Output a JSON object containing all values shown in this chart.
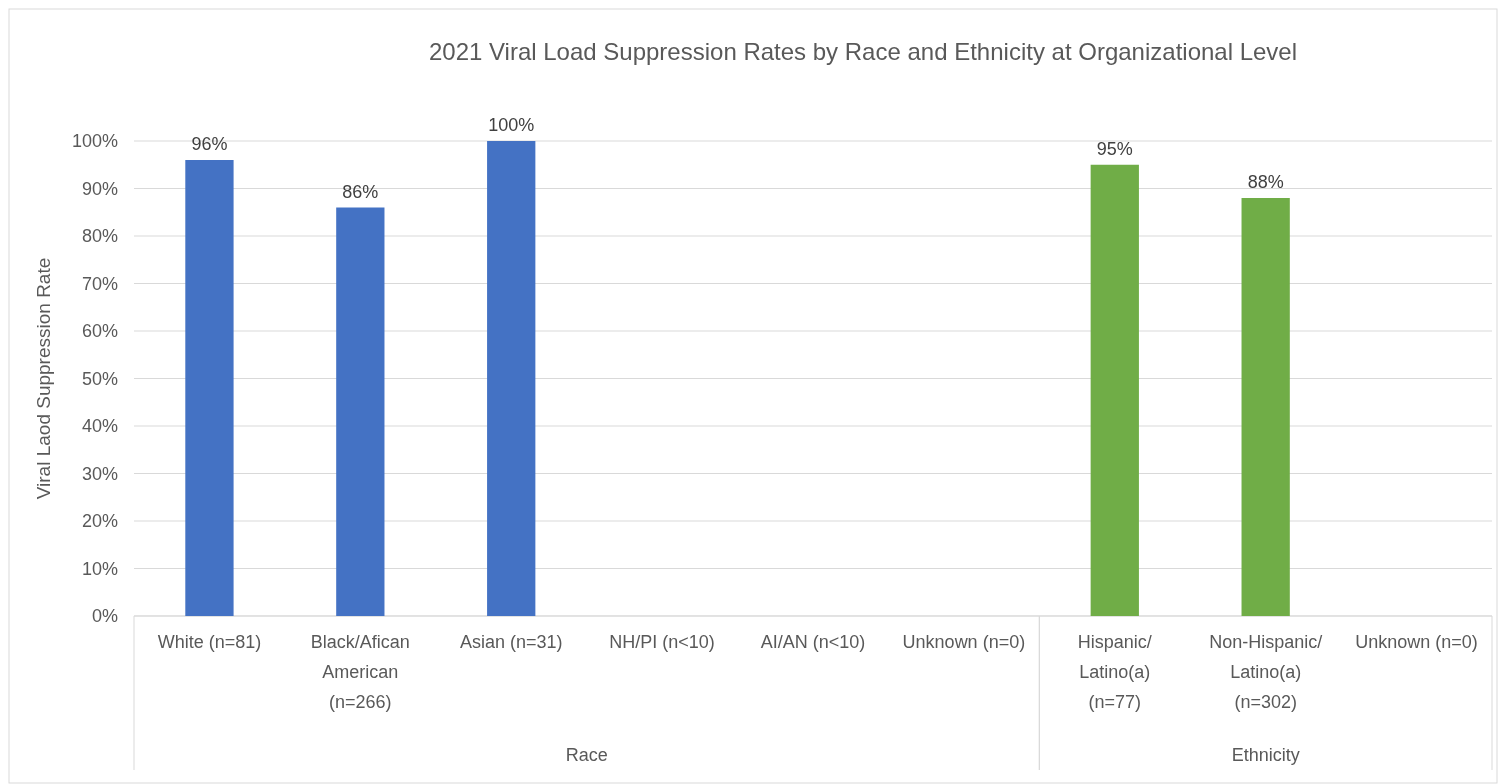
{
  "chart_data": {
    "type": "bar",
    "title": "2021 Viral Load Suppression Rates by Race and Ethnicity at Organizational Level",
    "ylabel": "Viral Laod Suppression Rate",
    "categories": [
      "White (n=81)",
      "Black/Afican American (n=266)",
      "Asian (n=31)",
      "NH/PI (n<10)",
      "AI/AN (n<10)",
      "Unknown (n=0)",
      "Hispanic/ Latino(a) (n=77)",
      "Non-Hispanic/ Latino(a) (n=302)",
      "Unknown (n=0)"
    ],
    "values": [
      96,
      86,
      100,
      null,
      null,
      null,
      95,
      88,
      null
    ],
    "value_labels": [
      "96%",
      "86%",
      "100%",
      null,
      null,
      null,
      "95%",
      "88%",
      null
    ],
    "colors": [
      "#4472c4",
      "#4472c4",
      "#4472c4",
      "#4472c4",
      "#4472c4",
      "#4472c4",
      "#70ad47",
      "#70ad47",
      "#70ad47"
    ],
    "annotations": [
      "Race",
      "Ethnicity"
    ],
    "ylim": [
      0,
      100
    ],
    "yticks": [
      {
        "value": 0,
        "label": "0%"
      },
      {
        "value": 10,
        "label": "10%"
      },
      {
        "value": 20,
        "label": "20%"
      },
      {
        "value": 30,
        "label": "30%"
      },
      {
        "value": 40,
        "label": "40%"
      },
      {
        "value": 50,
        "label": "50%"
      },
      {
        "value": 60,
        "label": "60%"
      },
      {
        "value": 70,
        "label": "70%"
      },
      {
        "value": 80,
        "label": "80%"
      },
      {
        "value": 90,
        "label": "90%"
      },
      {
        "value": 100,
        "label": "100%"
      }
    ],
    "grid": "y"
  }
}
